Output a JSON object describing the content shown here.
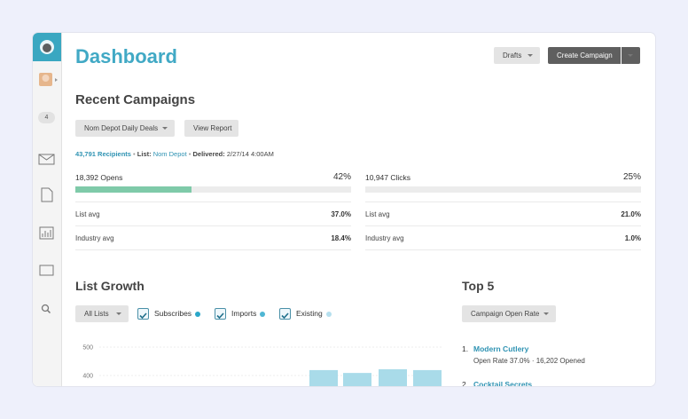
{
  "sidebar": {
    "badge": "4"
  },
  "header": {
    "title": "Dashboard",
    "drafts_button": "Drafts",
    "create_button": "Create Campaign"
  },
  "recent": {
    "title": "Recent Campaigns",
    "campaign_select": "Nom Depot Daily Deals",
    "report_button": "View Report",
    "recipients": "43,791 Recipients",
    "separator": "•",
    "list_label": "List:",
    "list_name": "Nom Depot",
    "delivered_label": "Delivered:",
    "delivered": "2/27/14 4:00AM",
    "stats": [
      {
        "label": "18,392 Opens",
        "rate": {
          "value": 42,
          "label": "42%"
        },
        "list_avg_label": "List avg",
        "list_avg": "37.0%",
        "industry_avg_label": "Industry avg",
        "industry_avg": "18.4%"
      },
      {
        "label": "10,947 Clicks",
        "rate": "25%",
        "list_avg_label": "List avg",
        "list_avg": "21.0%",
        "industry_avg_label": "Industry avg",
        "industry_avg": "1.0%"
      }
    ]
  },
  "list_growth": {
    "title": "List Growth",
    "filter_button": "All Lists",
    "legend": [
      {
        "name": "Subscribes",
        "color": "#2aa7c9"
      },
      {
        "name": "Imports",
        "color": "#4fb6d3"
      },
      {
        "name": "Existing",
        "color": "#b5dfee"
      }
    ],
    "chart": {
      "ylim": [
        400,
        500
      ],
      "yticks": [
        500,
        400
      ],
      "values": [
        419,
        409,
        422,
        419
      ],
      "color": "#a9dbe9"
    }
  },
  "top5": {
    "title": "Top 5",
    "sort_button": "Campaign Open Rate",
    "items": [
      {
        "rank": "1.",
        "name": "Modern Cutlery",
        "detail": "Open Rate 37.0% · 16,202 Opened"
      },
      {
        "rank": "2.",
        "name": "Cocktail Secrets"
      }
    ]
  }
}
